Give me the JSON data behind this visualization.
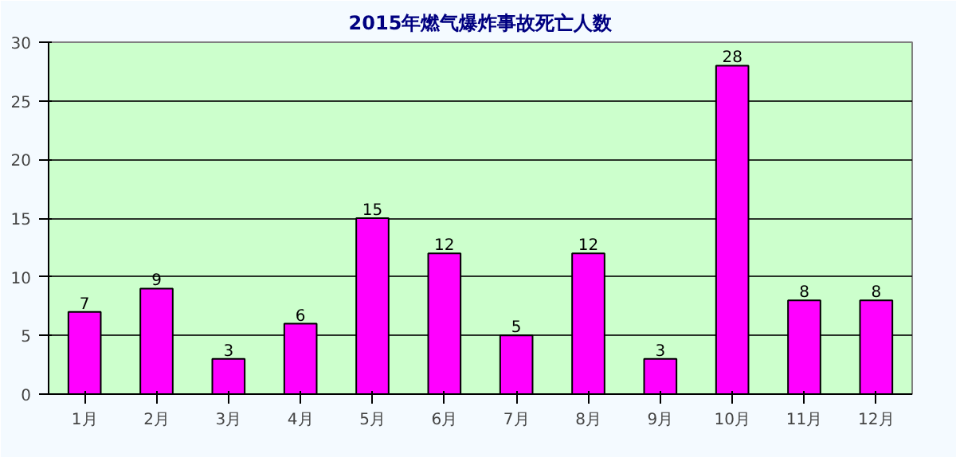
{
  "chart_data": {
    "type": "bar",
    "title": "2015年燃气爆炸事故死亡人数",
    "categories": [
      "1月",
      "2月",
      "3月",
      "4月",
      "5月",
      "6月",
      "7月",
      "8月",
      "9月",
      "10月",
      "11月",
      "12月"
    ],
    "values": [
      7,
      9,
      3,
      6,
      15,
      12,
      5,
      12,
      3,
      28,
      8,
      8
    ],
    "color": "#ff00ff",
    "ylim": [
      0,
      30
    ],
    "yticks": [
      0,
      5,
      10,
      15,
      20,
      25,
      30
    ],
    "grid": "y",
    "data_labels": true
  }
}
